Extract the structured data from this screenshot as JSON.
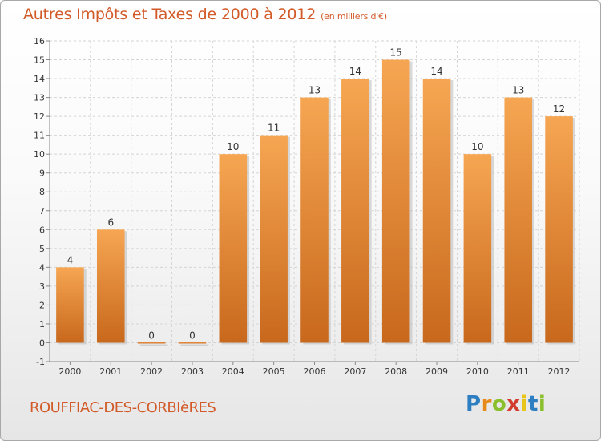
{
  "header": {
    "title": "Autres Impôts et Taxes de 2000 à 2012",
    "unit": "(en milliers d'€)"
  },
  "footer": {
    "commune": "ROUFFIAC-DES-CORBIèRES",
    "brand_letters": [
      "P",
      "r",
      "o",
      "x",
      "i",
      "t",
      "i"
    ],
    "brand_colors": [
      "#2e7fc1",
      "#e88a1a",
      "#8bbf2e",
      "#d23c2c",
      "#e8c51a",
      "#2e7fc1",
      "#8bbf2e"
    ]
  },
  "colors": {
    "accent": "#d25a28",
    "bar_top": "#f6a652",
    "bar_bottom": "#c8681c"
  },
  "chart_data": {
    "type": "bar",
    "title": "Autres Impôts et Taxes de 2000 à 2012",
    "subtitle": "(en milliers d'€)",
    "categories": [
      "2000",
      "2001",
      "2002",
      "2003",
      "2004",
      "2005",
      "2006",
      "2007",
      "2008",
      "2009",
      "2010",
      "2011",
      "2012"
    ],
    "values": [
      4,
      6,
      0,
      0,
      10,
      11,
      13,
      14,
      15,
      14,
      10,
      13,
      12
    ],
    "ylim": [
      -1,
      16
    ],
    "yticks": [
      -1,
      0,
      1,
      2,
      3,
      4,
      5,
      6,
      7,
      8,
      9,
      10,
      11,
      12,
      13,
      14,
      15,
      16
    ],
    "grid": true,
    "xlabel": "",
    "ylabel": ""
  }
}
